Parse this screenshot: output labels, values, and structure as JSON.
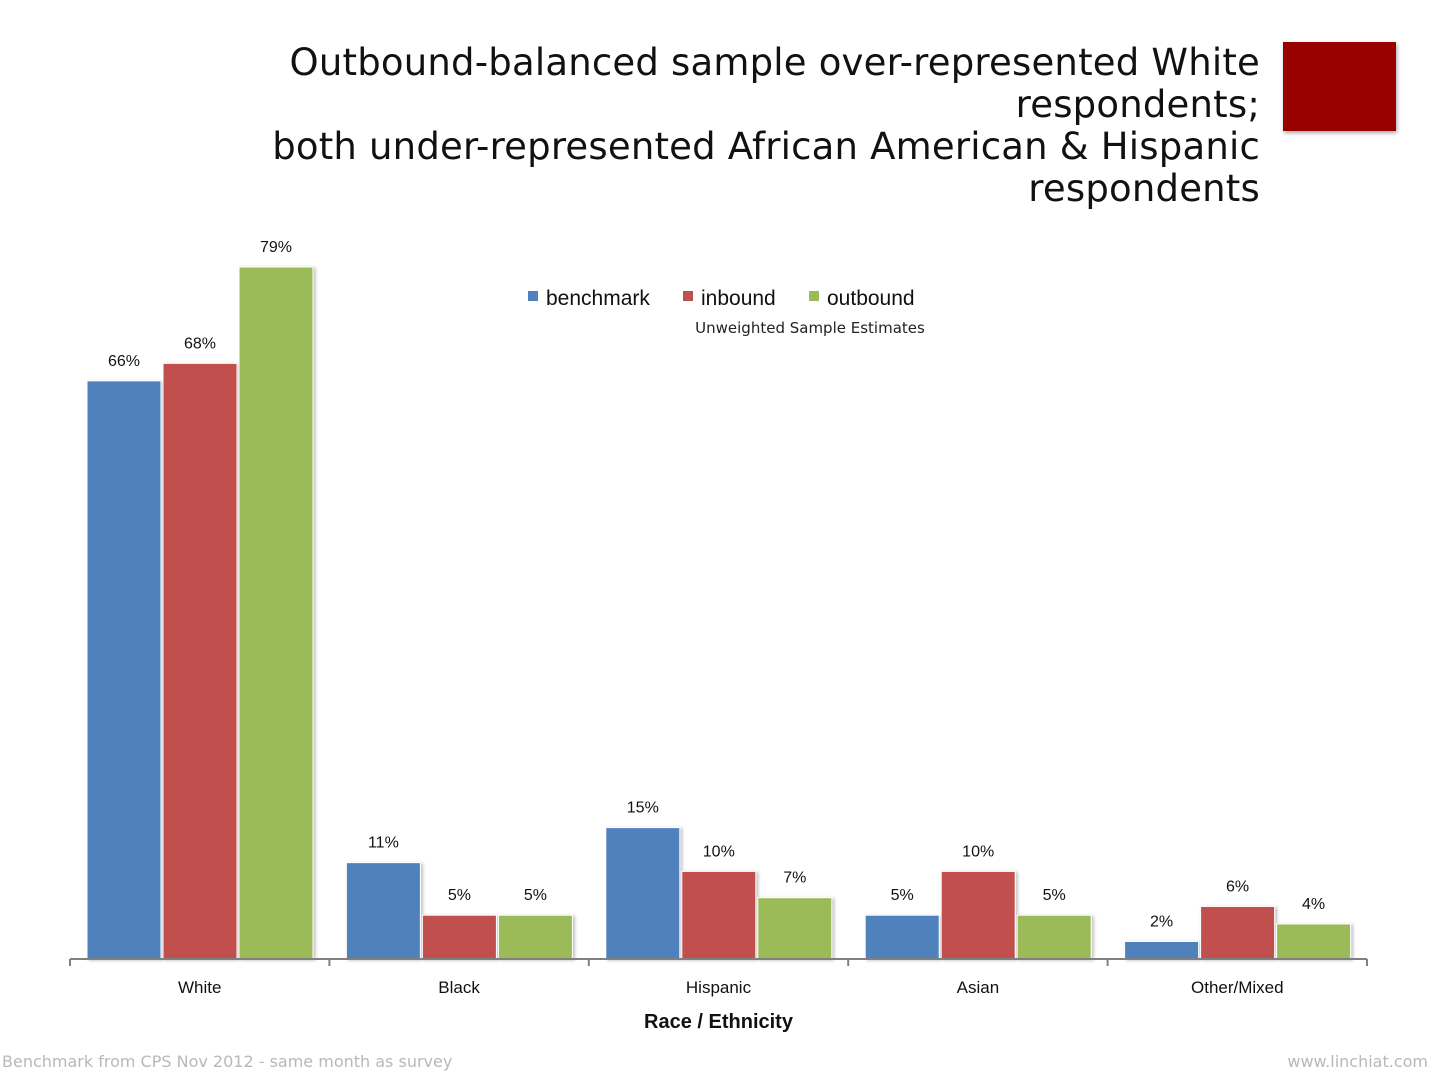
{
  "title": {
    "line1": "Outbound-balanced sample over-represented White respondents;",
    "line2": "both under-represented African American & Hispanic respondents"
  },
  "footer": {
    "left": "Benchmark from CPS Nov 2012 - same month as survey",
    "right": "www.linchiat.com"
  },
  "colors": {
    "accent": "#990000",
    "benchmark": "#4f81bd",
    "inbound": "#c0504d",
    "outbound": "#9bbb59"
  },
  "chart_data": {
    "type": "bar",
    "categories": [
      "White",
      "Black",
      "Hispanic",
      "Asian",
      "Other/Mixed"
    ],
    "series": [
      {
        "name": "benchmark",
        "values": [
          66,
          11,
          15,
          5,
          2
        ],
        "labels": [
          "66%",
          "11%",
          "15%",
          "5%",
          "2%"
        ]
      },
      {
        "name": "inbound",
        "values": [
          68,
          5,
          10,
          10,
          6
        ],
        "labels": [
          "68%",
          "5%",
          "10%",
          "10%",
          "6%"
        ]
      },
      {
        "name": "outbound",
        "values": [
          79,
          5,
          7,
          5,
          4
        ],
        "labels": [
          "79%",
          "5%",
          "7%",
          "5%",
          "4%"
        ]
      }
    ],
    "xlabel": "Race / Ethnicity",
    "ylabel": "",
    "legend_position": "top-center",
    "legend_subtitle": "Unweighted Sample Estimates",
    "grid": false,
    "ylim": [
      0,
      79
    ]
  }
}
